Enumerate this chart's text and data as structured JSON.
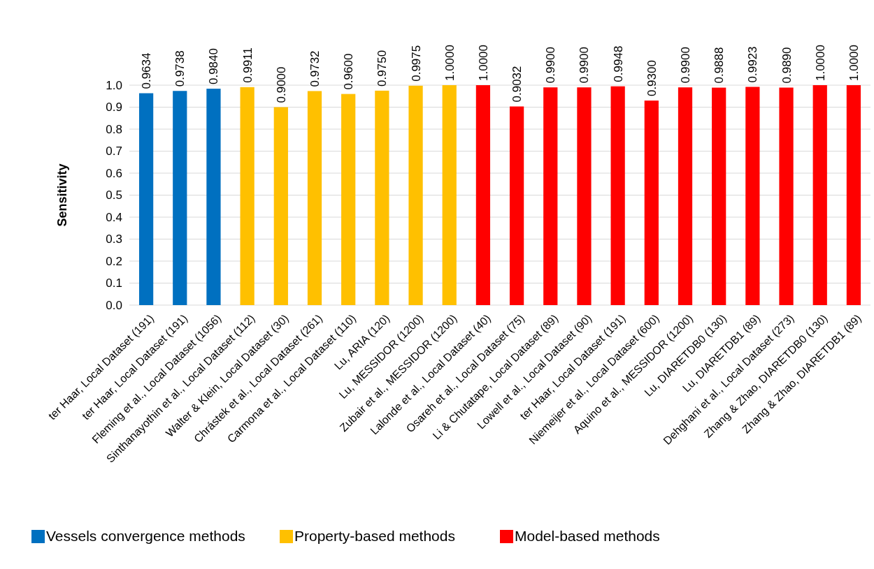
{
  "chart_data": {
    "type": "bar",
    "stacked": true,
    "ylabel": "Sensitivity",
    "categories": [
      "ter Haar, Local Dataset (191)",
      "ter Haar, Local Dataset (191)",
      "Fleming et al., Local Dataset (1056)",
      "Sinthanayothin et al., Local Dataset (112)",
      "Walter & Klein, Local Dataset (30)",
      "Chrástek et al., Local Dataset (261)",
      "Carmona et  al., Local Dataset (110)",
      "Lu, ARIA (120)",
      "Lu, MESSIDOR (1200)",
      "Zubair et al., MESSIDOR (1200)",
      "Lalonde et al., Local Dataset (40)",
      "Osareh et al., Local Dataset (75)",
      "Li & Chutatape, Local Dataset (89)",
      "Lowell et al., Local Dataset (90)",
      "ter Haar, Local Dataset (191)",
      "Niemeijer et al., Local Dataset (600)",
      "Aquino et al., MESSIDOR (1200)",
      "Lu, DIARETDB0 (130)",
      "Lu, DIARETDB1 (89)",
      "Dehghani et al., Local Dataset (273)",
      "Zhang & Zhao, DIARETDB0 (130)",
      "Zhang & Zhao, DIARETDB1 (89)"
    ],
    "series": [
      {
        "name": "Vessels convergence methods",
        "color": "#0070c0",
        "values": [
          0.9634,
          0.9738,
          0.984,
          null,
          null,
          null,
          null,
          null,
          null,
          null,
          null,
          null,
          null,
          null,
          null,
          null,
          null,
          null,
          null,
          null,
          null,
          null
        ],
        "value_labels": [
          "0.9634",
          "0.9738",
          "0.9840",
          null,
          null,
          null,
          null,
          null,
          null,
          null,
          null,
          null,
          null,
          null,
          null,
          null,
          null,
          null,
          null,
          null,
          null,
          null
        ]
      },
      {
        "name": "Property-based methods",
        "color": "#ffc000",
        "values": [
          null,
          null,
          null,
          0.9911,
          0.9,
          0.9732,
          0.96,
          0.975,
          0.9975,
          1.0,
          null,
          null,
          null,
          null,
          null,
          null,
          null,
          null,
          null,
          null,
          null,
          null
        ],
        "value_labels": [
          null,
          null,
          null,
          "0.9911",
          "0.9000",
          "0.9732",
          "0.9600",
          "0.9750",
          "0.9975",
          "1.0000",
          null,
          null,
          null,
          null,
          null,
          null,
          null,
          null,
          null,
          null,
          null,
          null
        ]
      },
      {
        "name": "Model-based methods",
        "color": "#ff0000",
        "values": [
          null,
          null,
          null,
          null,
          null,
          null,
          null,
          null,
          null,
          null,
          1.0,
          0.9032,
          0.99,
          0.99,
          0.9948,
          0.93,
          0.99,
          0.9888,
          0.9923,
          0.989,
          1.0,
          1.0
        ],
        "value_labels": [
          null,
          null,
          null,
          null,
          null,
          null,
          null,
          null,
          null,
          null,
          "1.0000",
          "0.9032",
          "0.9900",
          "0.9900",
          "0.9948",
          "0.9300",
          "0.9900",
          "0.9888",
          "0.9923",
          "0.9890",
          "1.0000",
          "1.0000"
        ]
      }
    ],
    "ylim": [
      0,
      1.0
    ],
    "yticks": [
      {
        "value": 0,
        "label": "0.0"
      },
      {
        "value": 0.1,
        "label": "0.1"
      },
      {
        "value": 0.2,
        "label": "0.2"
      },
      {
        "value": 0.3,
        "label": "0.3"
      },
      {
        "value": 0.4,
        "label": "0.4"
      },
      {
        "value": 0.5,
        "label": "0.5"
      },
      {
        "value": 0.6,
        "label": "0.6"
      },
      {
        "value": 0.7,
        "label": "0.7"
      },
      {
        "value": 0.8,
        "label": "0.8"
      },
      {
        "value": 0.9,
        "label": "0.9"
      },
      {
        "value": 1.0,
        "label": "1.0"
      }
    ],
    "grid": "y",
    "legend": "bottom"
  }
}
